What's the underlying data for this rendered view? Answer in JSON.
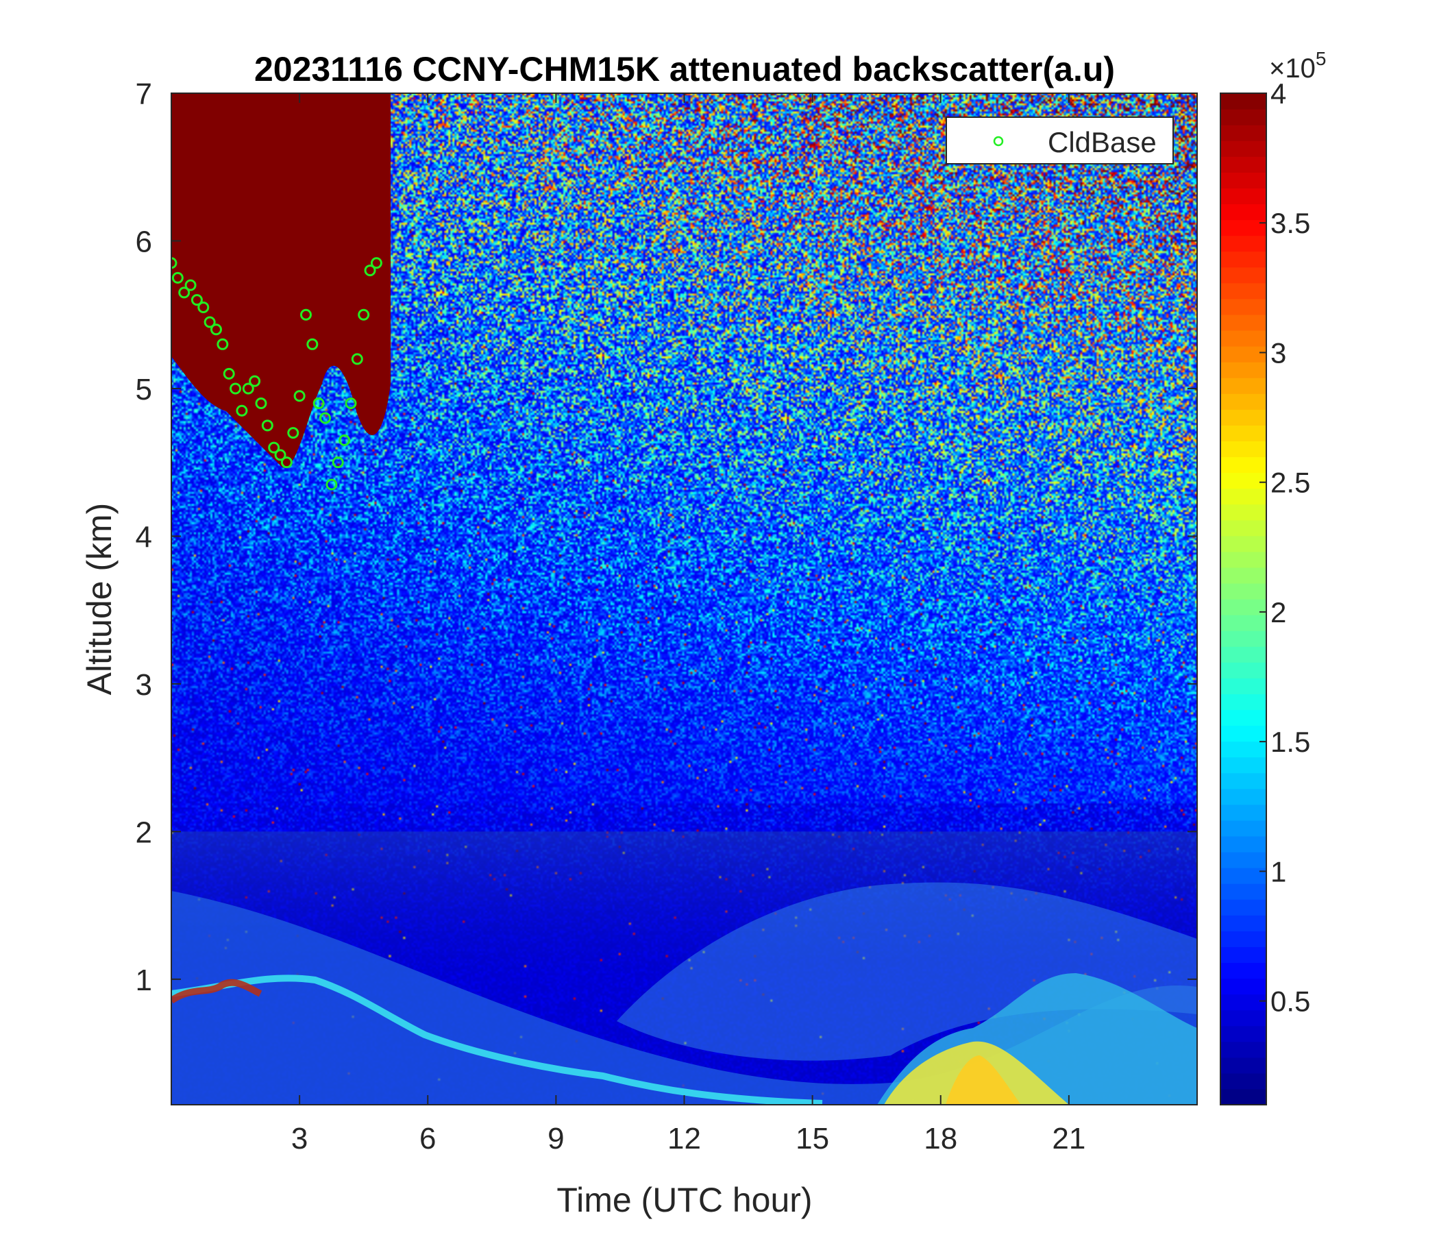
{
  "chart_data": {
    "type": "heatmap",
    "title": "20231116 CCNY-CHM15K attenuated backscatter(a.u)",
    "xlabel": "Time (UTC hour)",
    "ylabel": "Altitude (km)",
    "xlim": [
      0,
      24
    ],
    "ylim": [
      0.15,
      7
    ],
    "x_ticks": [
      3,
      6,
      9,
      12,
      15,
      18,
      21
    ],
    "x_tick_labels": [
      "3",
      "6",
      "9",
      "12",
      "15",
      "18",
      "21"
    ],
    "y_ticks": [
      1,
      2,
      3,
      4,
      5,
      6,
      7
    ],
    "y_tick_labels": [
      "1",
      "2",
      "3",
      "4",
      "5",
      "6",
      "7"
    ],
    "colorbar": {
      "colormap": "jet",
      "range": [
        0.1,
        4
      ],
      "exponent_label": "×10",
      "exponent_power": "5",
      "ticks": [
        0.5,
        1,
        1.5,
        2,
        2.5,
        3,
        3.5,
        4
      ],
      "tick_labels": [
        "0.5",
        "1",
        "1.5",
        "2",
        "2.5",
        "3",
        "3.5",
        "4"
      ]
    },
    "legend": {
      "placement": "top-right",
      "entries": [
        {
          "label": "CldBase",
          "marker": "circle",
          "color": "#22ee22"
        }
      ]
    },
    "series": [
      {
        "name": "CldBase",
        "type": "scatter",
        "x": [
          0.0,
          0.15,
          0.3,
          0.45,
          0.6,
          0.75,
          0.9,
          1.05,
          1.2,
          1.35,
          1.5,
          1.65,
          1.8,
          1.95,
          2.1,
          2.25,
          2.4,
          2.55,
          2.7,
          2.85,
          3.0,
          3.15,
          3.3,
          3.45,
          3.6,
          3.75,
          3.9,
          4.05,
          4.2,
          4.35,
          4.5,
          4.65,
          4.8
        ],
        "y": [
          5.85,
          5.75,
          5.65,
          5.7,
          5.6,
          5.55,
          5.45,
          5.4,
          5.3,
          5.1,
          5.0,
          4.85,
          5.0,
          5.05,
          4.9,
          4.75,
          4.6,
          4.55,
          4.5,
          4.7,
          4.95,
          5.5,
          5.3,
          4.9,
          4.8,
          4.35,
          4.5,
          4.65,
          4.9,
          5.2,
          5.5,
          5.8,
          5.85
        ]
      }
    ]
  }
}
